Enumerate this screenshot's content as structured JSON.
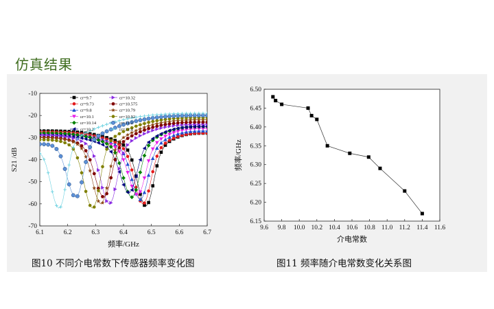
{
  "slide": {
    "title": "仿真结果"
  },
  "captions": {
    "left": "图10 不同介电常数下传感器频率变化图",
    "right": "图11 频率随介电常数变化关系图"
  },
  "colors": {
    "title": "#3f6d1f",
    "panel": "#f1f1f1"
  },
  "chart_data": [
    {
      "type": "line",
      "title": "",
      "xlabel": "频率/GHz",
      "ylabel": "S21 /dB",
      "xlim": [
        6.1,
        6.7
      ],
      "ylim": [
        -70,
        -10
      ],
      "xticks": [
        "6.1",
        "6.2",
        "6.3",
        "6.4",
        "6.5",
        "6.6",
        "6.7"
      ],
      "yticks": [
        "-10",
        "-20",
        "-30",
        "-40",
        "-50",
        "-60",
        "-70"
      ],
      "legend_position": "top",
      "series": [
        {
          "name": "εr=9.7",
          "color": "#000000",
          "marker": "square",
          "resonance_ghz": 6.48,
          "min_db": -61,
          "start_db": -27,
          "end_db": -28
        },
        {
          "name": "εr=9.73",
          "color": "#e41a1c",
          "marker": "circle",
          "resonance_ghz": 6.47,
          "min_db": -60,
          "start_db": -27.5,
          "end_db": -28
        },
        {
          "name": "εr=9.8",
          "color": "#1f4fd1",
          "marker": "triangle",
          "resonance_ghz": 6.46,
          "min_db": -58,
          "start_db": -28,
          "end_db": -27
        },
        {
          "name": "εr=10.1",
          "color": "#e81ee8",
          "marker": "tri-down",
          "resonance_ghz": 6.45,
          "min_db": -56,
          "start_db": -28.5,
          "end_db": -26
        },
        {
          "name": "εr=10.14",
          "color": "#008000",
          "marker": "diamond",
          "resonance_ghz": 6.43,
          "min_db": -57,
          "start_db": -28,
          "end_db": -25
        },
        {
          "name": "εr=10.2",
          "color": "#000080",
          "marker": "tri-left",
          "resonance_ghz": 6.42,
          "min_db": -55,
          "start_db": -29,
          "end_db": -25
        },
        {
          "name": "εr=10.32",
          "color": "#8a2be2",
          "marker": "tri-right",
          "resonance_ghz": 6.35,
          "min_db": -60,
          "start_db": -29,
          "end_db": -24
        },
        {
          "name": "εr=10.575",
          "color": "#800000",
          "marker": "hexagon",
          "resonance_ghz": 6.33,
          "min_db": -57,
          "start_db": -30,
          "end_db": -23
        },
        {
          "name": "εr=10.79",
          "color": "#8b4513",
          "marker": "star",
          "resonance_ghz": 6.32,
          "min_db": -60,
          "start_db": -30,
          "end_db": -22
        },
        {
          "name": "εr=10.92",
          "color": "#808000",
          "marker": "circle",
          "resonance_ghz": 6.29,
          "min_db": -62,
          "start_db": -31,
          "end_db": -21
        },
        {
          "name": "εr=11.2",
          "color": "#5b8fd6",
          "marker": "ball",
          "resonance_ghz": 6.23,
          "min_db": -57,
          "start_db": -33,
          "end_db": -20
        },
        {
          "name": "εr=11.4",
          "color": "#6ad1e0",
          "marker": "plus",
          "resonance_ghz": 6.17,
          "min_db": -62,
          "start_db": -36,
          "end_db": -19
        }
      ]
    },
    {
      "type": "line",
      "title": "",
      "xlabel": "介电常数",
      "ylabel": "频率/GHz",
      "xlim": [
        9.6,
        11.6
      ],
      "ylim": [
        6.15,
        6.5
      ],
      "xticks": [
        "9.6",
        "9.8",
        "10.0",
        "10.2",
        "10.4",
        "10.6",
        "10.8",
        "11.0",
        "11.2",
        "11.4",
        "11.6"
      ],
      "yticks": [
        "6.50",
        "6.45",
        "6.40",
        "6.35",
        "6.30",
        "6.25",
        "6.20",
        "6.15"
      ],
      "series": [
        {
          "name": "",
          "x": [
            9.7,
            9.73,
            9.8,
            10.1,
            10.14,
            10.2,
            10.32,
            10.575,
            10.79,
            10.92,
            11.2,
            11.4
          ],
          "y": [
            6.48,
            6.47,
            6.46,
            6.45,
            6.43,
            6.42,
            6.35,
            6.33,
            6.32,
            6.29,
            6.23,
            6.17
          ]
        }
      ]
    }
  ]
}
